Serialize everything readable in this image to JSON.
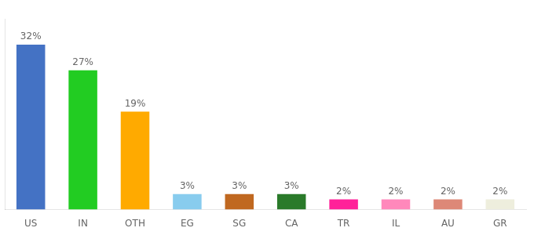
{
  "chart_data": {
    "type": "bar",
    "categories": [
      "US",
      "IN",
      "OTH",
      "EG",
      "SG",
      "CA",
      "TR",
      "IL",
      "AU",
      "GR"
    ],
    "values": [
      32,
      27,
      19,
      3,
      3,
      3,
      2,
      2,
      2,
      2
    ],
    "value_labels": [
      "32%",
      "27%",
      "19%",
      "3%",
      "3%",
      "3%",
      "2%",
      "2%",
      "2%",
      "2%"
    ],
    "colors": [
      "#4472c4",
      "#22cc22",
      "#ffaa00",
      "#88ccee",
      "#c06820",
      "#2a7a2a",
      "#ff2299",
      "#ff88bb",
      "#dd8877",
      "#eeeedd"
    ],
    "ylim": [
      0,
      37
    ],
    "grid": false,
    "data_labels": true,
    "tick_labels": "x"
  }
}
